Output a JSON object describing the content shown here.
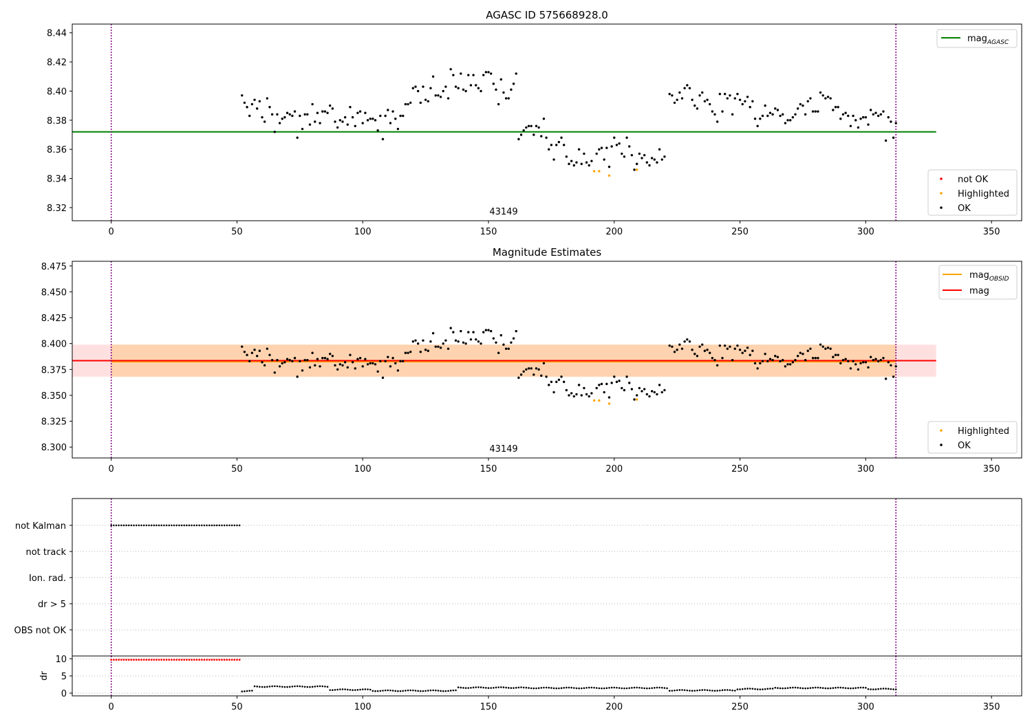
{
  "chart_data": [
    {
      "id": "panel1",
      "type": "scatter",
      "title": "AGASC ID 575668928.0",
      "annotation": "43149",
      "xlim": [
        -15.5,
        362
      ],
      "ylim": [
        8.311,
        8.446
      ],
      "xticks": [
        0,
        50,
        100,
        150,
        200,
        250,
        300,
        350
      ],
      "yticks": [
        "8.32",
        "8.34",
        "8.36",
        "8.38",
        "8.40",
        "8.42",
        "8.44"
      ],
      "vlines": [
        0,
        312
      ],
      "lines": [
        {
          "name_main": "mag",
          "name_sub": "AGASC",
          "color": "#008000",
          "y": 8.372,
          "x": [
            -15.5,
            328
          ]
        }
      ],
      "legend_lines_position": "upper right",
      "legend_points_position": "lower right",
      "legend_points": [
        {
          "label": "not OK",
          "color": "#ff0000"
        },
        {
          "label": "Highlighted",
          "color": "#ffa500"
        },
        {
          "label": "OK",
          "color": "#000000"
        }
      ],
      "colors": {
        "ok": "#000000",
        "highlighted": "#ffa500",
        "not_ok": "#ff0000",
        "vline": "#800080"
      },
      "points_ok": [
        [
          52,
          8.397
        ],
        [
          53,
          8.392
        ],
        [
          54,
          8.389
        ],
        [
          55,
          8.383
        ],
        [
          56,
          8.391
        ],
        [
          57,
          8.394
        ],
        [
          58,
          8.388
        ],
        [
          59,
          8.393
        ],
        [
          60,
          8.382
        ],
        [
          61,
          8.379
        ],
        [
          62,
          8.395
        ],
        [
          63,
          8.389
        ],
        [
          64,
          8.384
        ],
        [
          65,
          8.372
        ],
        [
          66,
          8.384
        ],
        [
          67,
          8.378
        ],
        [
          68,
          8.381
        ],
        [
          69,
          8.382
        ],
        [
          70,
          8.385
        ],
        [
          71,
          8.384
        ],
        [
          72,
          8.383
        ],
        [
          73,
          8.386
        ],
        [
          74,
          8.368
        ],
        [
          75,
          8.383
        ],
        [
          76,
          8.374
        ],
        [
          77,
          8.384
        ],
        [
          78,
          8.384
        ],
        [
          79,
          8.377
        ],
        [
          80,
          8.391
        ],
        [
          81,
          8.379
        ],
        [
          82,
          8.385
        ],
        [
          83,
          8.378
        ],
        [
          84,
          8.386
        ],
        [
          85,
          8.386
        ],
        [
          86,
          8.385
        ],
        [
          87,
          8.39
        ],
        [
          88,
          8.388
        ],
        [
          89,
          8.379
        ],
        [
          90,
          8.375
        ],
        [
          91,
          8.38
        ],
        [
          92,
          8.379
        ],
        [
          93,
          8.382
        ],
        [
          94,
          8.377
        ],
        [
          95,
          8.389
        ],
        [
          96,
          8.382
        ],
        [
          97,
          8.376
        ],
        [
          98,
          8.385
        ],
        [
          99,
          8.386
        ],
        [
          100,
          8.378
        ],
        [
          101,
          8.385
        ],
        [
          102,
          8.38
        ],
        [
          103,
          8.381
        ],
        [
          104,
          8.381
        ],
        [
          105,
          8.38
        ],
        [
          106,
          8.373
        ],
        [
          107,
          8.383
        ],
        [
          108,
          8.367
        ],
        [
          109,
          8.383
        ],
        [
          110,
          8.387
        ],
        [
          111,
          8.378
        ],
        [
          112,
          8.386
        ],
        [
          113,
          8.381
        ],
        [
          114,
          8.374
        ],
        [
          115,
          8.383
        ],
        [
          116,
          8.383
        ],
        [
          117,
          8.391
        ],
        [
          118,
          8.391
        ],
        [
          119,
          8.392
        ],
        [
          120,
          8.402
        ],
        [
          121,
          8.403
        ],
        [
          122,
          8.4
        ],
        [
          123,
          8.392
        ],
        [
          124,
          8.403
        ],
        [
          125,
          8.394
        ],
        [
          126,
          8.393
        ],
        [
          127,
          8.402
        ],
        [
          128,
          8.41
        ],
        [
          129,
          8.397
        ],
        [
          130,
          8.397
        ],
        [
          131,
          8.396
        ],
        [
          132,
          8.4
        ],
        [
          133,
          8.403
        ],
        [
          134,
          8.395
        ],
        [
          135,
          8.415
        ],
        [
          136,
          8.411
        ],
        [
          137,
          8.403
        ],
        [
          138,
          8.402
        ],
        [
          139,
          8.412
        ],
        [
          140,
          8.401
        ],
        [
          141,
          8.4
        ],
        [
          142,
          8.411
        ],
        [
          143,
          8.404
        ],
        [
          144,
          8.411
        ],
        [
          145,
          8.404
        ],
        [
          146,
          8.402
        ],
        [
          147,
          8.4
        ],
        [
          148,
          8.411
        ],
        [
          149,
          8.413
        ],
        [
          150,
          8.413
        ],
        [
          151,
          8.412
        ],
        [
          152,
          8.405
        ],
        [
          153,
          8.401
        ],
        [
          154,
          8.391
        ],
        [
          155,
          8.408
        ],
        [
          156,
          8.399
        ],
        [
          157,
          8.395
        ],
        [
          158,
          8.395
        ],
        [
          159,
          8.401
        ],
        [
          160,
          8.405
        ],
        [
          161,
          8.412
        ],
        [
          162,
          8.367
        ],
        [
          163,
          8.37
        ],
        [
          164,
          8.373
        ],
        [
          165,
          8.375
        ],
        [
          166,
          8.376
        ],
        [
          167,
          8.376
        ],
        [
          168,
          8.37
        ],
        [
          169,
          8.376
        ],
        [
          170,
          8.375
        ],
        [
          171,
          8.369
        ],
        [
          172,
          8.381
        ],
        [
          173,
          8.368
        ],
        [
          174,
          8.36
        ],
        [
          175,
          8.363
        ],
        [
          176,
          8.353
        ],
        [
          177,
          8.363
        ],
        [
          178,
          8.365
        ],
        [
          179,
          8.368
        ],
        [
          180,
          8.363
        ],
        [
          181,
          8.355
        ],
        [
          182,
          8.35
        ],
        [
          183,
          8.352
        ],
        [
          184,
          8.349
        ],
        [
          185,
          8.351
        ],
        [
          186,
          8.36
        ],
        [
          187,
          8.35
        ],
        [
          188,
          8.357
        ],
        [
          189,
          8.351
        ],
        [
          190,
          8.349
        ],
        [
          191,
          8.352
        ],
        [
          193,
          8.357
        ],
        [
          194,
          8.36
        ],
        [
          195,
          8.361
        ],
        [
          196,
          8.353
        ],
        [
          197,
          8.361
        ],
        [
          198,
          8.348
        ],
        [
          199,
          8.362
        ],
        [
          200,
          8.368
        ],
        [
          201,
          8.363
        ],
        [
          202,
          8.364
        ],
        [
          203,
          8.357
        ],
        [
          204,
          8.355
        ],
        [
          205,
          8.368
        ],
        [
          206,
          8.362
        ],
        [
          207,
          8.356
        ],
        [
          208,
          8.346
        ],
        [
          209,
          8.35
        ],
        [
          210,
          8.357
        ],
        [
          211,
          8.354
        ],
        [
          212,
          8.356
        ],
        [
          213,
          8.351
        ],
        [
          214,
          8.349
        ],
        [
          215,
          8.354
        ],
        [
          216,
          8.353
        ],
        [
          217,
          8.351
        ],
        [
          218,
          8.36
        ],
        [
          219,
          8.353
        ],
        [
          220,
          8.355
        ],
        [
          222,
          8.398
        ],
        [
          223,
          8.397
        ],
        [
          224,
          8.392
        ],
        [
          225,
          8.394
        ],
        [
          226,
          8.399
        ],
        [
          227,
          8.395
        ],
        [
          228,
          8.402
        ],
        [
          229,
          8.404
        ],
        [
          230,
          8.402
        ],
        [
          231,
          8.394
        ],
        [
          232,
          8.39
        ],
        [
          233,
          8.388
        ],
        [
          234,
          8.397
        ],
        [
          235,
          8.399
        ],
        [
          236,
          8.393
        ],
        [
          237,
          8.394
        ],
        [
          238,
          8.391
        ],
        [
          239,
          8.386
        ],
        [
          240,
          8.384
        ],
        [
          241,
          8.379
        ],
        [
          242,
          8.398
        ],
        [
          243,
          8.386
        ],
        [
          244,
          8.398
        ],
        [
          245,
          8.395
        ],
        [
          246,
          8.397
        ],
        [
          247,
          8.384
        ],
        [
          248,
          8.395
        ],
        [
          249,
          8.398
        ],
        [
          250,
          8.394
        ],
        [
          251,
          8.391
        ],
        [
          252,
          8.393
        ],
        [
          253,
          8.396
        ],
        [
          254,
          8.389
        ],
        [
          255,
          8.393
        ],
        [
          256,
          8.381
        ],
        [
          257,
          8.376
        ],
        [
          258,
          8.381
        ],
        [
          259,
          8.383
        ],
        [
          260,
          8.39
        ],
        [
          261,
          8.383
        ],
        [
          262,
          8.385
        ],
        [
          263,
          8.384
        ],
        [
          264,
          8.388
        ],
        [
          265,
          8.387
        ],
        [
          266,
          8.383
        ],
        [
          267,
          8.384
        ],
        [
          268,
          8.378
        ],
        [
          269,
          8.38
        ],
        [
          270,
          8.38
        ],
        [
          271,
          8.382
        ],
        [
          272,
          8.384
        ],
        [
          273,
          8.388
        ],
        [
          274,
          8.391
        ],
        [
          275,
          8.39
        ],
        [
          276,
          8.384
        ],
        [
          277,
          8.393
        ],
        [
          278,
          8.395
        ],
        [
          279,
          8.386
        ],
        [
          280,
          8.386
        ],
        [
          281,
          8.386
        ],
        [
          282,
          8.399
        ],
        [
          283,
          8.397
        ],
        [
          284,
          8.395
        ],
        [
          285,
          8.396
        ],
        [
          286,
          8.395
        ],
        [
          287,
          8.387
        ],
        [
          288,
          8.389
        ],
        [
          289,
          8.389
        ],
        [
          290,
          8.381
        ],
        [
          291,
          8.384
        ],
        [
          292,
          8.385
        ],
        [
          293,
          8.383
        ],
        [
          294,
          8.376
        ],
        [
          295,
          8.383
        ],
        [
          296,
          8.38
        ],
        [
          297,
          8.375
        ],
        [
          298,
          8.381
        ],
        [
          299,
          8.382
        ],
        [
          300,
          8.382
        ],
        [
          301,
          8.377
        ],
        [
          302,
          8.387
        ],
        [
          303,
          8.384
        ],
        [
          304,
          8.385
        ],
        [
          305,
          8.383
        ],
        [
          306,
          8.384
        ],
        [
          307,
          8.386
        ],
        [
          308,
          8.366
        ],
        [
          309,
          8.382
        ],
        [
          310,
          8.379
        ],
        [
          311,
          8.368
        ],
        [
          312,
          8.378
        ]
      ],
      "points_highlighted": [
        [
          192,
          8.345
        ],
        [
          194,
          8.345
        ],
        [
          198,
          8.342
        ],
        [
          209,
          8.346
        ]
      ]
    },
    {
      "id": "panel2",
      "type": "scatter",
      "title": "Magnitude Estimates",
      "annotation": "43149",
      "xlim": [
        -15.5,
        362
      ],
      "ylim": [
        8.2895,
        8.4795
      ],
      "xticks": [
        0,
        50,
        100,
        150,
        200,
        250,
        300,
        350
      ],
      "yticks": [
        "8.300",
        "8.325",
        "8.350",
        "8.375",
        "8.400",
        "8.425",
        "8.450",
        "8.475"
      ],
      "vlines": [
        0,
        312
      ],
      "bands": [
        {
          "x": [
            -15.5,
            328
          ],
          "y": [
            8.368,
            8.399
          ],
          "color": "#ff0000",
          "opacity": 0.12
        },
        {
          "x": [
            0,
            312
          ],
          "y": [
            8.368,
            8.399
          ],
          "color": "#ffa500",
          "opacity": 0.22
        }
      ],
      "lines": [
        {
          "name_main": "mag",
          "name_sub": "OBSID",
          "color": "#ffa500",
          "y": 8.3825,
          "x": [
            0,
            312
          ]
        },
        {
          "name_main": "mag",
          "name_sub": "",
          "color": "#ff0000",
          "y": 8.3835,
          "x": [
            -15.5,
            328
          ]
        }
      ],
      "legend_lines_position": "upper right",
      "legend_points_position": "lower right",
      "legend_points": [
        {
          "label": "Highlighted",
          "color": "#ffa500"
        },
        {
          "label": "OK",
          "color": "#000000"
        }
      ],
      "colors": {
        "ok": "#000000",
        "highlighted": "#ffa500",
        "vline": "#800080"
      },
      "points_ok": "same as panel1",
      "points_highlighted": "same as panel1"
    },
    {
      "id": "panel3",
      "type": "scatter",
      "categories": [
        "not Kalman",
        "not track",
        "Ion. rad.",
        "dr > 5",
        "OBS not OK"
      ],
      "xlim": [
        -15.5,
        362
      ],
      "vlines": [
        0,
        312
      ],
      "flag_not_kalman_x": [
        0,
        51
      ],
      "colors": {
        "flags": "#000000",
        "grid": "#b0b0b0",
        "vline": "#800080"
      }
    },
    {
      "id": "panel4",
      "type": "scatter",
      "ylabel": "dr",
      "xlim": [
        -15.5,
        362
      ],
      "ylim": [
        -0.8,
        10.8
      ],
      "yticks": [
        "0",
        "5",
        "10"
      ],
      "xticks": [
        0,
        50,
        100,
        150,
        200,
        250,
        300,
        350
      ],
      "vlines": [
        0,
        312
      ],
      "red_x": [
        0,
        51
      ],
      "red_y": 9.7,
      "dr_segments": [
        {
          "x": [
            52,
            56
          ],
          "y": 0.6
        },
        {
          "x": [
            57,
            86
          ],
          "y": 1.9
        },
        {
          "x": [
            87,
            103
          ],
          "y": 1.0
        },
        {
          "x": [
            104,
            137
          ],
          "y": 0.7
        },
        {
          "x": [
            138,
            163
          ],
          "y": 1.6
        },
        {
          "x": [
            164,
            221
          ],
          "y": 1.5
        },
        {
          "x": [
            222,
            248
          ],
          "y": 0.8
        },
        {
          "x": [
            249,
            263
          ],
          "y": 1.2
        },
        {
          "x": [
            264,
            300
          ],
          "y": 1.5
        },
        {
          "x": [
            301,
            312
          ],
          "y": 1.2
        }
      ],
      "colors": {
        "ok": "#000000",
        "not_ok": "#ff0000",
        "grid": "#b0b0b0",
        "vline": "#800080"
      }
    }
  ]
}
